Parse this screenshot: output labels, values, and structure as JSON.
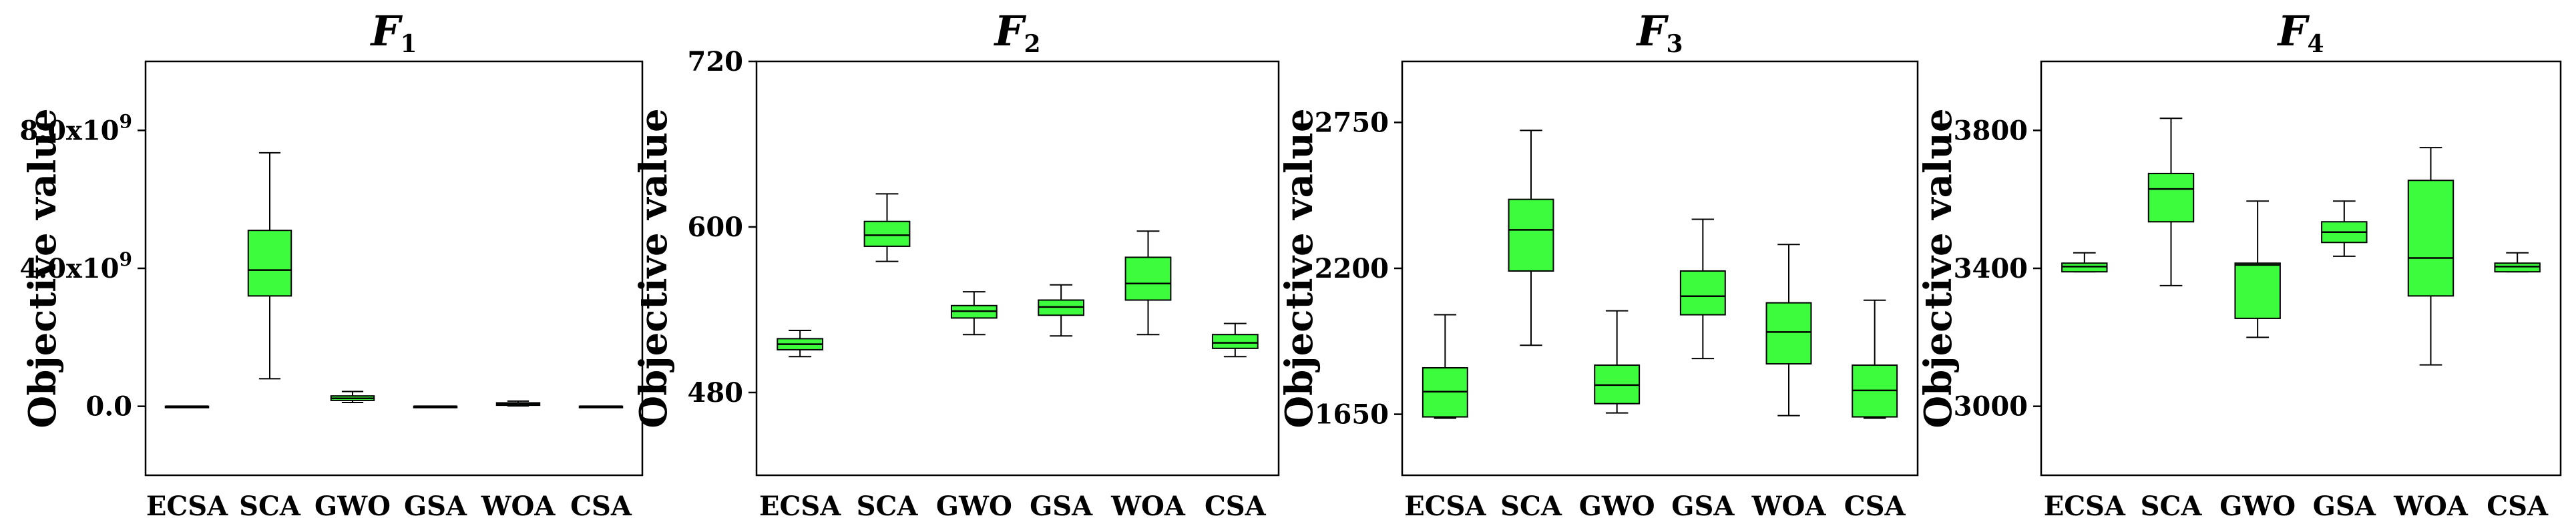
{
  "figure": {
    "panel_count": 4,
    "colors": {
      "box_fill": "#3dfc3d",
      "stroke": "#000000"
    }
  },
  "chart_data": [
    {
      "type": "box",
      "title": "F",
      "title_sub": "1",
      "xlabel": "",
      "ylabel": "Objective value",
      "categories": [
        "ECSA",
        "SCA",
        "GWO",
        "GSA",
        "WOA",
        "CSA"
      ],
      "ylim": [
        -2000000000,
        10000000000
      ],
      "yticks": [
        0,
        4000000000,
        8000000000
      ],
      "ytick_labels": [
        "0.0",
        "4.0x10",
        "8.0x10"
      ],
      "ytick_exponents": [
        "",
        "9",
        "9"
      ],
      "boxes": [
        {
          "name": "ECSA",
          "whisker_low": 0,
          "q1": 0,
          "median": 0,
          "q3": 0,
          "whisker_high": 0
        },
        {
          "name": "SCA",
          "whisker_low": 800000000,
          "q1": 3200000000,
          "median": 3950000000,
          "q3": 5100000000,
          "whisker_high": 7350000000
        },
        {
          "name": "GWO",
          "whisker_low": 110000000,
          "q1": 170000000,
          "median": 230000000,
          "q3": 300000000,
          "whisker_high": 430000000
        },
        {
          "name": "GSA",
          "whisker_low": 0,
          "q1": 0,
          "median": 0,
          "q3": 0,
          "whisker_high": 0
        },
        {
          "name": "WOA",
          "whisker_low": 10000000,
          "q1": 30000000,
          "median": 70000000,
          "q3": 100000000,
          "whisker_high": 150000000
        },
        {
          "name": "CSA",
          "whisker_low": 0,
          "q1": 0,
          "median": 0,
          "q3": 0,
          "whisker_high": 0
        }
      ]
    },
    {
      "type": "box",
      "title": "F",
      "title_sub": "2",
      "xlabel": "",
      "ylabel": "Objective value",
      "categories": [
        "ECSA",
        "SCA",
        "GWO",
        "GSA",
        "WOA",
        "CSA"
      ],
      "ylim": [
        420,
        720
      ],
      "yticks": [
        480,
        600,
        720
      ],
      "ytick_labels": [
        "480",
        "600",
        "720"
      ],
      "ytick_exponents": [
        "",
        "",
        ""
      ],
      "boxes": [
        {
          "name": "ECSA",
          "whisker_low": 506,
          "q1": 511,
          "median": 515,
          "q3": 519,
          "whisker_high": 525
        },
        {
          "name": "SCA",
          "whisker_low": 575,
          "q1": 586,
          "median": 594,
          "q3": 604,
          "whisker_high": 624
        },
        {
          "name": "GWO",
          "whisker_low": 522,
          "q1": 534,
          "median": 539,
          "q3": 543,
          "whisker_high": 553
        },
        {
          "name": "GSA",
          "whisker_low": 521,
          "q1": 536,
          "median": 542,
          "q3": 547,
          "whisker_high": 558
        },
        {
          "name": "WOA",
          "whisker_low": 522,
          "q1": 547,
          "median": 559,
          "q3": 578,
          "whisker_high": 597
        },
        {
          "name": "CSA",
          "whisker_low": 506,
          "q1": 512,
          "median": 516,
          "q3": 522,
          "whisker_high": 530
        }
      ]
    },
    {
      "type": "box",
      "title": "F",
      "title_sub": "3",
      "xlabel": "",
      "ylabel": "Objective value",
      "categories": [
        "ECSA",
        "SCA",
        "GWO",
        "GSA",
        "WOA",
        "CSA"
      ],
      "ylim": [
        1420,
        2980
      ],
      "yticks": [
        1650,
        2200,
        2750
      ],
      "ytick_labels": [
        "1650",
        "2200",
        "2750"
      ],
      "ytick_exponents": [
        "",
        "",
        ""
      ],
      "boxes": [
        {
          "name": "ECSA",
          "whisker_low": 1635,
          "q1": 1640,
          "median": 1735,
          "q3": 1825,
          "whisker_high": 2025
        },
        {
          "name": "SCA",
          "whisker_low": 1910,
          "q1": 2190,
          "median": 2345,
          "q3": 2460,
          "whisker_high": 2720
        },
        {
          "name": "GWO",
          "whisker_low": 1655,
          "q1": 1690,
          "median": 1760,
          "q3": 1835,
          "whisker_high": 2040
        },
        {
          "name": "GSA",
          "whisker_low": 1860,
          "q1": 2025,
          "median": 2095,
          "q3": 2190,
          "whisker_high": 2385
        },
        {
          "name": "WOA",
          "whisker_low": 1645,
          "q1": 1840,
          "median": 1960,
          "q3": 2070,
          "whisker_high": 2290
        },
        {
          "name": "CSA",
          "whisker_low": 1635,
          "q1": 1640,
          "median": 1740,
          "q3": 1835,
          "whisker_high": 2080
        }
      ]
    },
    {
      "type": "box",
      "title": "F",
      "title_sub": "4",
      "xlabel": "",
      "ylabel": "Objective value",
      "categories": [
        "ECSA",
        "SCA",
        "GWO",
        "GSA",
        "WOA",
        "CSA"
      ],
      "ylim": [
        2800,
        4000
      ],
      "yticks": [
        3000,
        3400,
        3800
      ],
      "ytick_labels": [
        "3000",
        "3400",
        "3800"
      ],
      "ytick_exponents": [
        "",
        "",
        ""
      ],
      "boxes": [
        {
          "name": "ECSA",
          "whisker_low": 3390,
          "q1": 3390,
          "median": 3405,
          "q3": 3415,
          "whisker_high": 3445
        },
        {
          "name": "SCA",
          "whisker_low": 3350,
          "q1": 3535,
          "median": 3630,
          "q3": 3675,
          "whisker_high": 3835
        },
        {
          "name": "GWO",
          "whisker_low": 3200,
          "q1": 3255,
          "median": 3410,
          "q3": 3415,
          "whisker_high": 3595
        },
        {
          "name": "GSA",
          "whisker_low": 3435,
          "q1": 3475,
          "median": 3505,
          "q3": 3535,
          "whisker_high": 3595
        },
        {
          "name": "WOA",
          "whisker_low": 3120,
          "q1": 3320,
          "median": 3430,
          "q3": 3655,
          "whisker_high": 3750
        },
        {
          "name": "CSA",
          "whisker_low": 3390,
          "q1": 3390,
          "median": 3405,
          "q3": 3415,
          "whisker_high": 3445
        }
      ]
    }
  ]
}
